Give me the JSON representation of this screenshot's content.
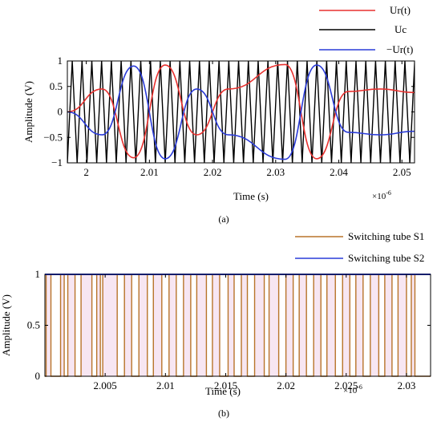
{
  "chart_data": [
    {
      "type": "line",
      "panel_label": "(a)",
      "xlabel": "Time (s)",
      "ylabel": "Amplitude (V)",
      "x_multiplier": "×10",
      "x_exponent": "-6",
      "xlim": [
        1.997,
        2.052
      ],
      "ylim": [
        -1,
        1
      ],
      "x_ticks": [
        2,
        2.01,
        2.02,
        2.03,
        2.04,
        2.05
      ],
      "x_tick_labels": [
        "2",
        "2.01",
        "2.02",
        "2.03",
        "2.04",
        "2.05"
      ],
      "y_ticks": [
        -1,
        -0.5,
        0,
        0.5,
        1
      ],
      "y_tick_labels": [
        "−1",
        "−0.5",
        "0",
        "0.5",
        "1"
      ],
      "legend_position": "top-right",
      "series": [
        {
          "name": "Ur(t)",
          "color": "#e8312f",
          "kind": "modulating",
          "x": [
            1.997,
            2.0025,
            2.0075,
            2.0125,
            2.0175,
            2.0225,
            2.0315,
            2.0365,
            2.0415,
            2.0465,
            2.052
          ],
          "y": [
            0.0,
            0.45,
            -0.9,
            0.92,
            -0.45,
            0.45,
            0.93,
            -0.92,
            0.4,
            0.45,
            0.38
          ]
        },
        {
          "name": "Uc",
          "color": "#000000",
          "kind": "carrier",
          "amplitude": 1.0,
          "period": 0.00155
        },
        {
          "name": "−Ur(t)",
          "color": "#2a3bd8",
          "kind": "modulating",
          "x": [
            1.997,
            2.0025,
            2.0075,
            2.0125,
            2.0175,
            2.0225,
            2.0315,
            2.0365,
            2.0415,
            2.0465,
            2.052
          ],
          "y": [
            0.0,
            -0.45,
            0.9,
            -0.92,
            0.45,
            -0.45,
            -0.93,
            0.92,
            -0.4,
            -0.45,
            -0.38
          ]
        }
      ]
    },
    {
      "type": "line",
      "panel_label": "(b)",
      "xlabel": "Time (s)",
      "ylabel": "Amplitude (V)",
      "x_multiplier": "×10",
      "x_exponent": "-6",
      "xlim": [
        2.0,
        2.032
      ],
      "ylim": [
        0,
        1
      ],
      "x_ticks": [
        2.005,
        2.01,
        2.015,
        2.02,
        2.025,
        2.03
      ],
      "x_tick_labels": [
        "2.005",
        "2.01",
        "2.015",
        "2.02",
        "2.025",
        "2.03"
      ],
      "y_ticks": [
        0,
        0.5,
        1
      ],
      "y_tick_labels": [
        "0",
        "0.5",
        "1"
      ],
      "legend_position": "top-right",
      "series": [
        {
          "name": "Switching tube S1",
          "color": "#b8742a",
          "kind": "pulse",
          "pulses": [
            [
              2.0001,
              2.0005
            ],
            [
              2.0013,
              2.0016
            ],
            [
              2.0019,
              2.0025
            ],
            [
              2.003,
              2.0039
            ],
            [
              2.0043,
              2.0046
            ],
            [
              2.0048,
              2.006
            ],
            [
              2.0066,
              2.0072
            ],
            [
              2.0078,
              2.0085
            ],
            [
              2.009,
              2.0097
            ],
            [
              2.0103,
              2.0109
            ],
            [
              2.0115,
              2.0121
            ],
            [
              2.0126,
              2.0134
            ],
            [
              2.0139,
              2.0145
            ],
            [
              2.0152,
              2.0157
            ],
            [
              2.0163,
              2.0168
            ],
            [
              2.0174,
              2.0182
            ],
            [
              2.0186,
              2.0194
            ],
            [
              2.02,
              2.0206
            ],
            [
              2.0211,
              2.0217
            ],
            [
              2.0223,
              2.0229
            ],
            [
              2.0234,
              2.0241
            ],
            [
              2.0247,
              2.0253
            ],
            [
              2.0258,
              2.0264
            ],
            [
              2.027,
              2.0277
            ],
            [
              2.0282,
              2.0288
            ],
            [
              2.0293,
              2.03
            ],
            [
              2.0304,
              2.0307
            ]
          ]
        },
        {
          "name": "Switching tube S2",
          "color": "#2a3bd8",
          "kind": "pulse",
          "constant": 1
        }
      ]
    }
  ]
}
